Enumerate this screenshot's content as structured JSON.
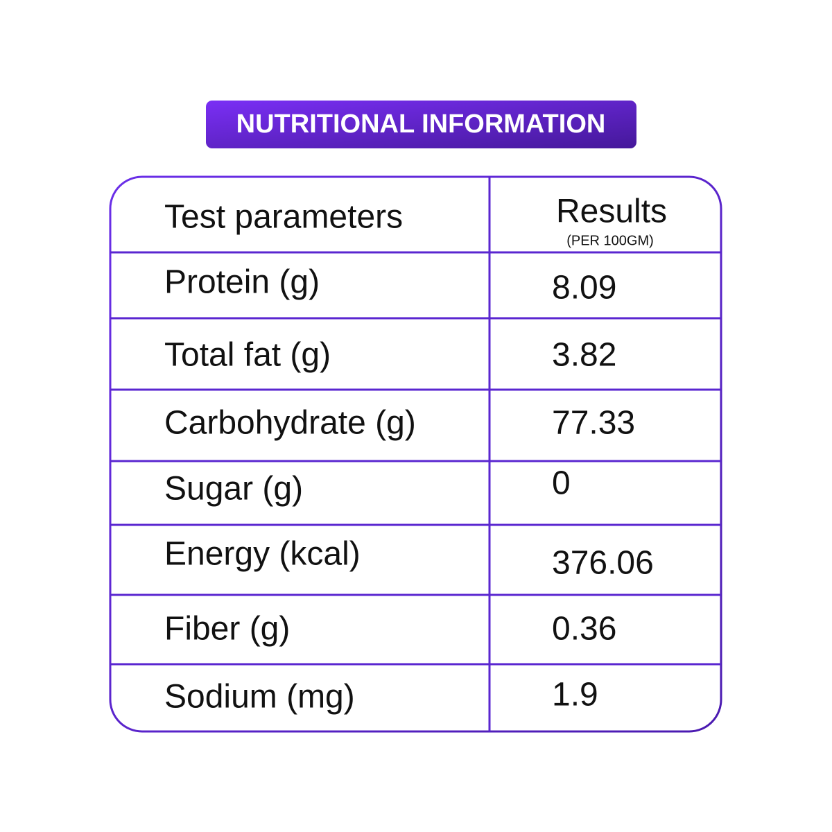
{
  "header": {
    "title": "NUTRITIONAL INFORMATION"
  },
  "table": {
    "columns": [
      "Test parameters",
      "Results"
    ],
    "results_note": "(PER 100GM)",
    "rows": [
      [
        "Protein (g)",
        "8.09"
      ],
      [
        "Total fat (g)",
        "3.82"
      ],
      [
        "Carbohydrate (g)",
        "77.33"
      ],
      [
        "Sugar (g)",
        "0"
      ],
      [
        "Energy (kcal)",
        "376.06"
      ],
      [
        "Fiber (g)",
        "0.36"
      ],
      [
        "Sodium (mg)",
        "1.9"
      ]
    ]
  }
}
